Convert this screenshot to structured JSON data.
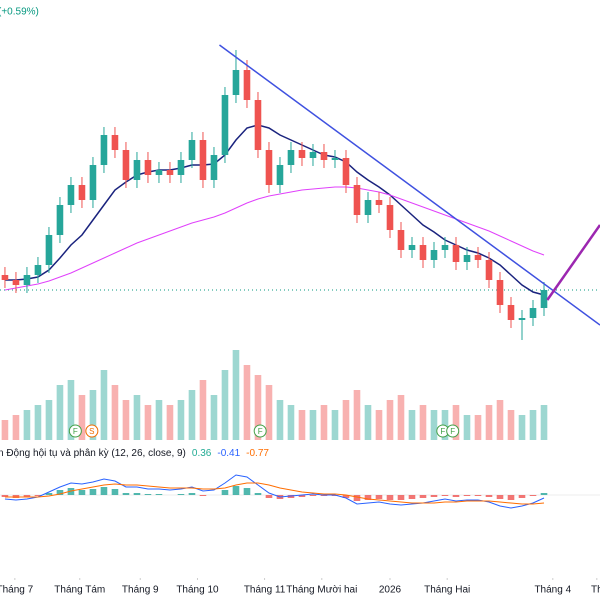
{
  "header": {
    "change": "(+0.59%)"
  },
  "chart_data": {
    "type": "candlestick",
    "xlim": [
      -0.45,
      54.09
    ],
    "xticks": [
      {
        "value": 0.9,
        "label": "Tháng 7"
      },
      {
        "value": 6.8,
        "label": "Tháng Tám"
      },
      {
        "value": 12.3,
        "label": "Tháng 9"
      },
      {
        "value": 17.5,
        "label": "Tháng 10"
      },
      {
        "value": 23.6,
        "label": "Tháng 11"
      },
      {
        "value": 28.8,
        "label": "Tháng Mười hai"
      },
      {
        "value": 35,
        "label": "2026"
      },
      {
        "value": 40.2,
        "label": "Tháng Hai"
      },
      {
        "value": 49.8,
        "label": "Tháng 4"
      },
      {
        "value": 53.8,
        "label": "Th"
      }
    ],
    "ylim": [
      0,
      320
    ],
    "up_color": "#26a69a",
    "down_color": "#ef5350",
    "open": [
      75,
      70,
      65,
      75,
      85,
      115,
      145,
      165,
      150,
      185,
      215,
      200,
      170,
      190,
      175,
      180,
      175,
      190,
      210,
      170,
      195,
      255,
      280,
      250,
      200,
      165,
      185,
      200,
      192,
      198,
      190,
      192,
      165,
      135,
      150,
      145,
      120,
      100,
      105,
      90,
      100,
      105,
      88,
      95,
      90,
      70,
      45,
      30,
      32,
      42
    ],
    "high": [
      83,
      78,
      83,
      93,
      123,
      153,
      173,
      173,
      193,
      223,
      223,
      208,
      198,
      198,
      188,
      188,
      198,
      218,
      218,
      203,
      263,
      300,
      290,
      258,
      208,
      193,
      208,
      208,
      206,
      206,
      200,
      200,
      173,
      158,
      158,
      153,
      128,
      113,
      113,
      108,
      113,
      113,
      103,
      103,
      98,
      78,
      53,
      40,
      50,
      68
    ],
    "low": [
      62,
      57,
      57,
      67,
      77,
      107,
      137,
      142,
      142,
      177,
      192,
      162,
      162,
      167,
      167,
      167,
      167,
      182,
      162,
      162,
      187,
      247,
      242,
      192,
      157,
      157,
      177,
      184,
      184,
      182,
      182,
      157,
      127,
      127,
      137,
      112,
      92,
      92,
      82,
      82,
      92,
      80,
      80,
      82,
      62,
      37,
      22,
      10,
      24,
      34
    ],
    "close": [
      70,
      65,
      75,
      85,
      115,
      145,
      165,
      150,
      185,
      215,
      200,
      170,
      190,
      175,
      180,
      175,
      190,
      210,
      170,
      195,
      255,
      280,
      250,
      200,
      165,
      185,
      200,
      192,
      198,
      190,
      192,
      165,
      135,
      150,
      145,
      120,
      100,
      105,
      90,
      100,
      105,
      88,
      95,
      90,
      70,
      45,
      30,
      32,
      42,
      60
    ],
    "series": [
      {
        "name": "MA fast",
        "color": "#1a237e",
        "values": [
          70,
          70,
          71,
          73,
          80,
          92,
          105,
          115,
          130,
          145,
          160,
          168,
          175,
          178,
          180,
          180,
          182,
          185,
          185,
          186,
          195,
          210,
          222,
          225,
          222,
          215,
          210,
          205,
          200,
          195,
          193,
          188,
          178,
          170,
          163,
          155,
          145,
          135,
          125,
          118,
          110,
          105,
          100,
          97,
          92,
          85,
          75,
          65,
          58,
          55
        ]
      },
      {
        "name": "MA slow",
        "color": "#e040fb",
        "values": [
          60,
          62,
          64,
          66,
          69,
          73,
          77,
          82,
          87,
          92,
          97,
          102,
          107,
          111,
          115,
          119,
          123,
          127,
          130,
          133,
          137,
          142,
          147,
          151,
          154,
          156,
          158,
          160,
          161,
          162,
          163,
          163,
          162,
          160,
          158,
          155,
          151,
          147,
          143,
          139,
          135,
          131,
          127,
          123,
          119,
          114,
          109,
          104,
          99,
          95
        ]
      }
    ],
    "trendline": {
      "color": "#3f51e0",
      "x": [
        19.5,
        54.09
      ],
      "y": [
        305,
        25
      ]
    },
    "arrow": {
      "color": "#9c27b0",
      "x": [
        49.3,
        54.09
      ],
      "y": [
        50,
        125
      ]
    },
    "volume": {
      "ylim": [
        0,
        100
      ],
      "values": [
        20,
        25,
        30,
        35,
        40,
        55,
        60,
        45,
        50,
        70,
        55,
        40,
        45,
        35,
        40,
        35,
        40,
        50,
        60,
        45,
        70,
        90,
        75,
        65,
        55,
        40,
        35,
        30,
        30,
        35,
        30,
        40,
        50,
        35,
        30,
        40,
        45,
        30,
        35,
        30,
        30,
        35,
        25,
        25,
        35,
        40,
        30,
        25,
        30,
        35
      ]
    },
    "events": [
      {
        "x": 6.4,
        "label": "F"
      },
      {
        "x": 7.9,
        "label": "S"
      },
      {
        "x": 23.2,
        "label": "F"
      },
      {
        "x": 39.8,
        "label": "F"
      },
      {
        "x": 40.7,
        "label": "F"
      }
    ],
    "macd": {
      "title": "n Động hội tụ và phân kỳ (12, 26, close, 9)",
      "readout": [
        0.36,
        -0.41,
        -0.77
      ],
      "ylim": [
        -30,
        30
      ],
      "histogram": [
        -2,
        -3,
        -2,
        -1,
        2,
        5,
        7,
        5,
        6,
        8,
        6,
        2,
        2,
        1,
        1,
        0,
        1,
        2,
        -1,
        0,
        5,
        9,
        7,
        2,
        -3,
        -4,
        -3,
        -2,
        -1,
        -1,
        -1,
        -3,
        -6,
        -5,
        -4,
        -5,
        -5,
        -4,
        -3,
        -2,
        -1,
        -2,
        -1,
        -1,
        -2,
        -4,
        -5,
        -3,
        -1,
        2
      ],
      "macd_line": {
        "color": "#2962ff",
        "values": [
          -4,
          -5,
          -4,
          -2,
          3,
          8,
          12,
          11,
          13,
          16,
          14,
          8,
          8,
          6,
          6,
          5,
          6,
          8,
          4,
          5,
          12,
          20,
          18,
          10,
          2,
          -2,
          -1,
          0,
          1,
          0,
          0,
          -3,
          -9,
          -8,
          -7,
          -9,
          -10,
          -9,
          -8,
          -6,
          -4,
          -6,
          -5,
          -5,
          -7,
          -11,
          -13,
          -11,
          -8,
          -3
        ]
      },
      "signal_line": {
        "color": "#ff6d00",
        "values": [
          -2,
          -2,
          -2,
          -2,
          -1,
          1,
          4,
          6,
          8,
          10,
          11,
          10,
          10,
          9,
          8,
          7,
          7,
          7,
          6,
          6,
          7,
          10,
          12,
          12,
          10,
          7,
          5,
          3,
          2,
          1,
          1,
          0,
          -2,
          -4,
          -5,
          -6,
          -7,
          -8,
          -8,
          -8,
          -7,
          -7,
          -6,
          -6,
          -6,
          -7,
          -8,
          -9,
          -9,
          -8
        ]
      }
    }
  }
}
